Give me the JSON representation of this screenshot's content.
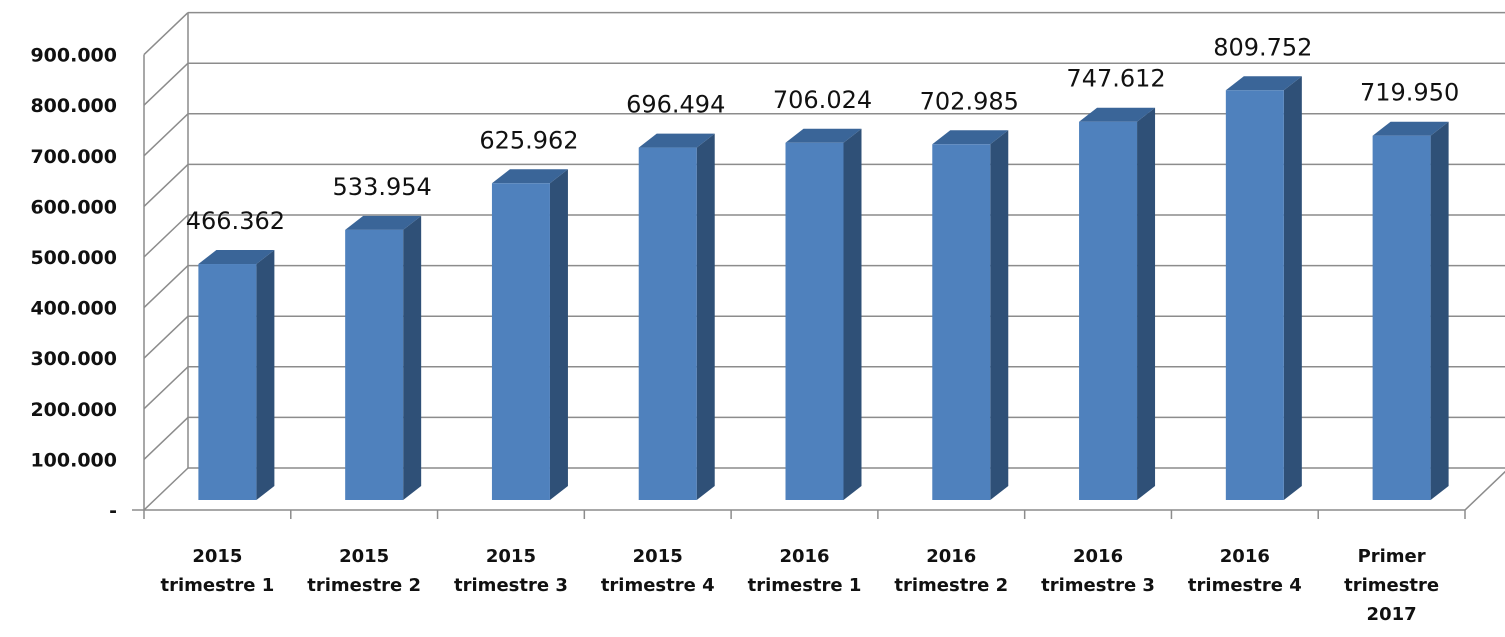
{
  "chart_data": {
    "type": "bar",
    "categories": [
      [
        "2015",
        "trimestre 1"
      ],
      [
        "2015",
        "trimestre 2"
      ],
      [
        "2015",
        "trimestre 3"
      ],
      [
        "2015",
        "trimestre 4"
      ],
      [
        "2016",
        "trimestre 1"
      ],
      [
        "2016",
        "trimestre 2"
      ],
      [
        "2016",
        "trimestre 3"
      ],
      [
        "2016",
        "trimestre 4"
      ],
      [
        "Primer",
        "trimestre",
        "2017"
      ]
    ],
    "values": [
      466362,
      533954,
      625962,
      696494,
      706024,
      702985,
      747612,
      809752,
      719950
    ],
    "data_labels": [
      "466.362",
      "533.954",
      "625.962",
      "696.494",
      "706.024",
      "702.985",
      "747.612",
      "809.752",
      "719.950"
    ],
    "ytick_labels": [
      "-",
      "100.000",
      "200.000",
      "300.000",
      "400.000",
      "500.000",
      "600.000",
      "700.000",
      "800.000",
      "900.000"
    ],
    "ylim": [
      0,
      900000
    ],
    "grid": true,
    "style": "3d-column",
    "colors": {
      "bar_front": "#4f81bd",
      "bar_side": "#2f5077",
      "bar_top": "#3a6598",
      "grid": "#8c8c8c"
    }
  }
}
